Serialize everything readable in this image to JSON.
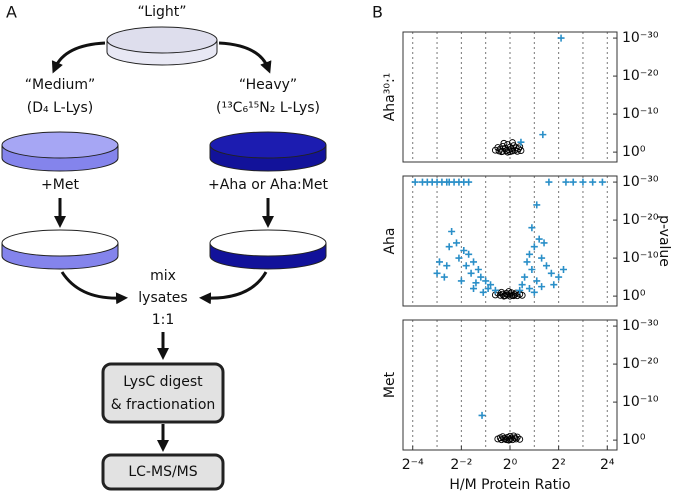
{
  "panel_a": {
    "label": "A",
    "light": "“Light”",
    "medium": "“Medium”",
    "medium_label": "(D₄ L-Lys)",
    "heavy": "“Heavy”",
    "heavy_label": "(¹³C₆¹⁵N₂ L-Lys)",
    "medium_treat": "+Met",
    "heavy_treat": "+Aha or Aha:Met",
    "mix": [
      "mix",
      "lysates",
      "1:1"
    ],
    "digest": [
      "LysC digest",
      "& fractionation"
    ],
    "lcms": "LC-MS/MS"
  },
  "panel_b_label": "B",
  "chart_data": [
    {
      "type": "scatter",
      "ylabel": "Aha³⁰:¹",
      "xlim": [
        -4.4,
        4.4
      ],
      "ylim": [
        -2.6,
        31.6
      ],
      "xgrid": [
        -4,
        -3,
        -2,
        -1,
        0,
        1,
        2,
        3,
        4
      ],
      "yticks": [
        {
          "value": 0,
          "label": "10⁰"
        },
        {
          "value": 10,
          "label": "10⁻¹⁰"
        },
        {
          "value": 20,
          "label": "10⁻²⁰"
        },
        {
          "value": 30,
          "label": "10⁻³⁰"
        }
      ],
      "series": [
        {
          "color": "#000000",
          "marker": "circle",
          "x": [
            -0.6,
            -0.5,
            -0.45,
            -0.4,
            -0.3,
            -0.3,
            -0.2,
            -0.15,
            -0.1,
            -0.05,
            0,
            0,
            0.05,
            0.1,
            0.15,
            0.2,
            0.25,
            0.3,
            0.35,
            0.4,
            -0.25,
            -0.35,
            0.1,
            -0.1,
            0.45
          ],
          "values": [
            0.5,
            1.2,
            0.3,
            0.8,
            1.5,
            0.2,
            1,
            0.4,
            2,
            0.6,
            0.1,
            1.3,
            0.8,
            0.3,
            1.7,
            0.5,
            1.1,
            0.2,
            0.9,
            1.4,
            2.3,
            0.1,
            2.5,
            0,
            0.4
          ]
        },
        {
          "color": "#2a8fc8",
          "marker": "plus",
          "x": [
            2.1,
            1.35,
            0.45
          ],
          "values": [
            30,
            4.6,
            2.6
          ]
        }
      ]
    },
    {
      "type": "scatter",
      "ylabel": "Aha",
      "ylabel_right": "p-value",
      "xlim": [
        -4.4,
        4.4
      ],
      "ylim": [
        -2.6,
        31.6
      ],
      "xgrid": [
        -4,
        -3,
        -2,
        -1,
        0,
        1,
        2,
        3,
        4
      ],
      "yticks": [
        {
          "value": 0,
          "label": "10⁰"
        },
        {
          "value": 10,
          "label": "10⁻¹⁰"
        },
        {
          "value": 20,
          "label": "10⁻²⁰"
        },
        {
          "value": 30,
          "label": "10⁻³⁰"
        }
      ],
      "series": [
        {
          "color": "#000000",
          "marker": "circle",
          "x": [
            -0.6,
            -0.5,
            -0.4,
            -0.35,
            -0.3,
            -0.2,
            -0.15,
            -0.1,
            0,
            0,
            0.05,
            0.1,
            0.2,
            0.25,
            0.3,
            0.4,
            0.5,
            -0.25,
            0.15,
            -0.05
          ],
          "values": [
            0.3,
            0.8,
            0.2,
            1,
            0.5,
            0.1,
            0.7,
            0.3,
            0,
            0.6,
            0.9,
            0.2,
            0.4,
            0.8,
            0.1,
            0.5,
            0.2,
            0,
            0.1,
            1.2
          ]
        },
        {
          "color": "#2a8fc8",
          "marker": "plus",
          "x": [
            -3.9,
            -3.6,
            -3.4,
            -3.2,
            -3.0,
            -2.8,
            -2.6,
            -2.5,
            -2.3,
            -2.1,
            -1.9,
            -1.7,
            1.6,
            2.3,
            2.6,
            3.0,
            3.4,
            3.8,
            -2.4,
            -2.2,
            -2.5,
            -1.9,
            -2.1,
            -1.7,
            -1.5,
            -1.8,
            -1.3,
            -1.6,
            -1.2,
            -1.0,
            -1.4,
            -0.8,
            -0.9,
            -0.6,
            -2.7,
            -2.0,
            -1.1,
            -1.5,
            -2.9,
            -2.6,
            -3.0,
            1.1,
            0.9,
            1.2,
            1.0,
            1.4,
            0.8,
            1.3,
            0.7,
            1.5,
            0.9,
            1.7,
            0.6,
            1.1,
            2.0,
            0.5,
            1.3,
            0.8,
            1.8,
            2.2,
            0.4,
            1.0
          ],
          "values": [
            30,
            30,
            30,
            30,
            30,
            30,
            30,
            30,
            30,
            30,
            30,
            30,
            30,
            30,
            30,
            30,
            30,
            30,
            17,
            14,
            13,
            12,
            10,
            11,
            9,
            8,
            7,
            6,
            5,
            4,
            3.5,
            3,
            2,
            1.5,
            5,
            4,
            1,
            2,
            9,
            8,
            6,
            24,
            18,
            15,
            13,
            14,
            11,
            10,
            9,
            8,
            7,
            6,
            5,
            4,
            5,
            3,
            2.5,
            2,
            3,
            7,
            1.5,
            1
          ]
        }
      ]
    },
    {
      "type": "scatter",
      "ylabel": "Met",
      "xlabel": "H/M Protein Ratio",
      "xlim": [
        -4.4,
        4.4
      ],
      "ylim": [
        -2.6,
        31.6
      ],
      "xgrid": [
        -4,
        -3,
        -2,
        -1,
        0,
        1,
        2,
        3,
        4
      ],
      "xticks": [
        {
          "value": -4,
          "label": "2⁻⁴"
        },
        {
          "value": -2,
          "label": "2⁻²"
        },
        {
          "value": 0,
          "label": "2⁰"
        },
        {
          "value": 2,
          "label": "2²"
        },
        {
          "value": 4,
          "label": "2⁴"
        }
      ],
      "yticks": [
        {
          "value": 0,
          "label": "10⁰"
        },
        {
          "value": 10,
          "label": "10⁻¹⁰"
        },
        {
          "value": 20,
          "label": "10⁻²⁰"
        },
        {
          "value": 30,
          "label": "10⁻³⁰"
        }
      ],
      "series": [
        {
          "color": "#000000",
          "marker": "circle",
          "x": [
            -0.5,
            -0.4,
            -0.35,
            -0.3,
            -0.2,
            -0.15,
            -0.1,
            0,
            0,
            0.05,
            0.1,
            0.2,
            0.25,
            0.3,
            0.4,
            -0.25,
            0.15,
            -0.05
          ],
          "values": [
            0.3,
            0.6,
            0.1,
            0.9,
            0.4,
            0.1,
            0.7,
            0.2,
            1,
            0.5,
            0.1,
            0.6,
            0.3,
            0.8,
            0.2,
            0.4,
            1.1,
            0
          ]
        },
        {
          "color": "#2a8fc8",
          "marker": "plus",
          "x": [
            -1.15
          ],
          "values": [
            6.5
          ]
        }
      ]
    }
  ]
}
